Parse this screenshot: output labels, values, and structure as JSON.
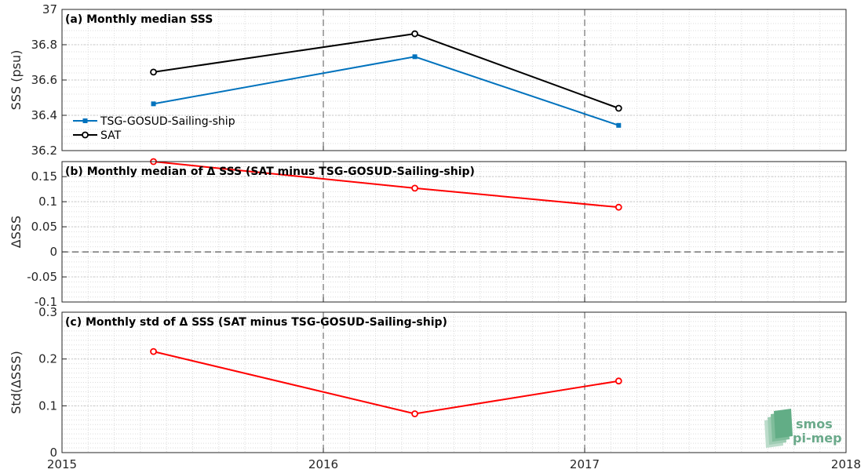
{
  "chart_data": [
    {
      "type": "line",
      "title": "(a) Monthly median SSS",
      "xlabel": "",
      "ylabel": "SSS (psu)",
      "xlim": [
        2015,
        2018
      ],
      "ylim": [
        36.2,
        37
      ],
      "x_ticks": [
        "2015",
        "2016",
        "2017",
        "2018"
      ],
      "y_ticks": [
        "36.2",
        "36.4",
        "36.6",
        "36.8",
        "37"
      ],
      "grid": true,
      "legend_position": "bottom-left",
      "series": [
        {
          "name": "TSG-GOSUD-Sailing-ship",
          "color": "#0072bd",
          "marker": "filled-square",
          "x": [
            2015.35,
            2016.35,
            2017.13
          ],
          "values": [
            36.465,
            36.732,
            36.343
          ]
        },
        {
          "name": "SAT",
          "color": "#000000",
          "marker": "open-circle",
          "x": [
            2015.35,
            2016.35,
            2017.13
          ],
          "values": [
            36.645,
            36.862,
            36.44
          ]
        }
      ]
    },
    {
      "type": "line",
      "title": "(b) Monthly median of Δ SSS (SAT minus TSG-GOSUD-Sailing-ship)",
      "xlabel": "",
      "ylabel": "ΔSSS",
      "xlim": [
        2015,
        2018
      ],
      "ylim": [
        -0.1,
        0.18
      ],
      "x_ticks": [],
      "y_ticks": [
        "-0.1",
        "-0.05",
        "0",
        "0.05",
        "0.1",
        "0.15"
      ],
      "grid": true,
      "series": [
        {
          "color": "#ff0000",
          "marker": "open-circle",
          "x": [
            2015.35,
            2016.35,
            2017.13
          ],
          "values": [
            0.18,
            0.127,
            0.089
          ]
        }
      ]
    },
    {
      "type": "line",
      "title": "(c) Monthly std of Δ SSS (SAT minus TSG-GOSUD-Sailing-ship)",
      "xlabel": "",
      "ylabel": "Std(ΔSSS)",
      "xlim": [
        2015,
        2018
      ],
      "ylim": [
        0,
        0.3
      ],
      "x_ticks": [
        "2015",
        "2016",
        "2017",
        "2018"
      ],
      "y_ticks": [
        "0",
        "0.1",
        "0.2",
        "0.3"
      ],
      "grid": true,
      "series": [
        {
          "color": "#ff0000",
          "marker": "open-circle",
          "x": [
            2015.35,
            2016.35,
            2017.13
          ],
          "values": [
            0.216,
            0.083,
            0.153
          ]
        }
      ]
    }
  ],
  "logo": {
    "line1": "smos",
    "line2": "pi-mep"
  }
}
